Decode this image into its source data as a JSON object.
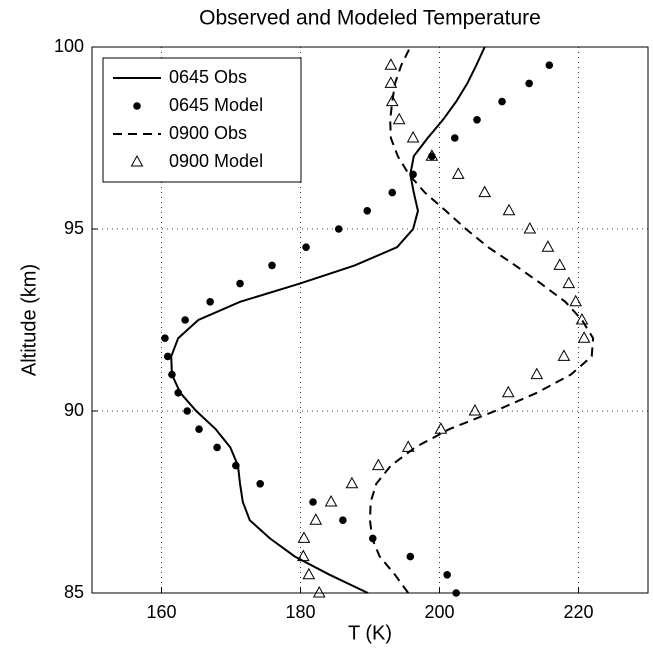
{
  "chart_data": {
    "type": "profile",
    "title": "Observed and Modeled Temperature",
    "x_label": "T (K)",
    "y_label": "Altitude (km)",
    "xlim": [
      150,
      230
    ],
    "xticks": [
      160,
      180,
      200,
      220
    ],
    "ylim": [
      85,
      100
    ],
    "yticks": [
      85,
      90,
      95,
      100
    ],
    "grid": true,
    "legend": "upper-left",
    "series": [
      {
        "name": "0645 Obs",
        "color": "#000000",
        "style": "solid",
        "y": [
          85,
          85.5,
          86,
          86.5,
          87,
          87.5,
          88,
          88.5,
          89,
          89.5,
          90,
          90.5,
          91,
          91.5,
          92,
          92.5,
          93,
          93.5,
          94,
          94.5,
          95,
          95.5,
          96,
          96.5,
          97,
          97.5,
          98,
          98.5,
          99,
          99.5,
          100
        ],
        "x": [
          189.7,
          184.2,
          179.2,
          175.6,
          172.7,
          171.7,
          171.3,
          171.0,
          169.9,
          167.8,
          165.0,
          162.7,
          161.5,
          161.4,
          162.4,
          165.3,
          171.3,
          179.9,
          187.8,
          193.9,
          196.2,
          196.9,
          196.3,
          195.8,
          196.3,
          198.3,
          200.5,
          202.4,
          204.0,
          205.3,
          206.5
        ]
      },
      {
        "name": "0645 Model",
        "color": "#000000",
        "style": "dot",
        "y": [
          85,
          85.5,
          86,
          86.5,
          87,
          87.5,
          88,
          88.5,
          89,
          89.5,
          90,
          90.5,
          91,
          91.5,
          92,
          92.5,
          93,
          93.5,
          94,
          94.5,
          95,
          95.5,
          96,
          96.5,
          97,
          97.5,
          98,
          98.5,
          99,
          99.5
        ],
        "x": [
          202.4,
          201.1,
          195.8,
          190.4,
          186.1,
          181.8,
          174.2,
          170.7,
          168.0,
          165.4,
          163.7,
          162.4,
          161.5,
          160.9,
          160.5,
          163.4,
          167.0,
          171.3,
          175.9,
          180.8,
          185.5,
          189.6,
          193.2,
          196.2,
          198.9,
          202.2,
          205.4,
          209.0,
          212.9,
          215.8
        ]
      },
      {
        "name": "0900 Obs",
        "color": "#000000",
        "style": "dashed",
        "y": [
          85,
          85.5,
          86,
          86.5,
          87,
          87.5,
          88,
          88.5,
          89,
          89.5,
          90,
          90.5,
          91,
          91.5,
          92,
          92.5,
          93,
          93.5,
          94,
          94.5,
          95,
          95.5,
          96,
          96.5,
          97,
          97.5,
          98,
          98.5,
          99,
          99.5,
          100
        ],
        "x": [
          195.5,
          193.6,
          191.4,
          190.3,
          190.0,
          190.1,
          190.9,
          193.0,
          196.5,
          201.4,
          208.0,
          214.0,
          218.9,
          221.9,
          222.1,
          220.5,
          218.1,
          214.6,
          210.9,
          207.0,
          203.8,
          200.9,
          197.9,
          195.6,
          194.0,
          193.0,
          192.9,
          193.2,
          193.6,
          194.5,
          195.8
        ]
      },
      {
        "name": "0900 Model",
        "color": "#000000",
        "style": "triangle",
        "y": [
          85,
          85.5,
          86,
          86.5,
          87,
          87.5,
          88,
          88.5,
          89,
          89.5,
          90,
          90.5,
          91,
          91.5,
          92,
          92.5,
          93,
          93.5,
          94,
          94.5,
          95,
          95.5,
          96,
          96.5,
          97,
          97.5,
          98,
          98.5,
          99,
          99.5
        ],
        "x": [
          182.7,
          181.2,
          180.4,
          180.5,
          182.2,
          184.4,
          187.4,
          191.2,
          195.5,
          200.2,
          205.1,
          209.9,
          214.0,
          217.9,
          220.8,
          220.5,
          219.6,
          218.6,
          217.3,
          215.6,
          213.0,
          210.0,
          206.5,
          202.7,
          198.9,
          196.2,
          194.2,
          193.2,
          193.0,
          193.0
        ]
      }
    ]
  }
}
